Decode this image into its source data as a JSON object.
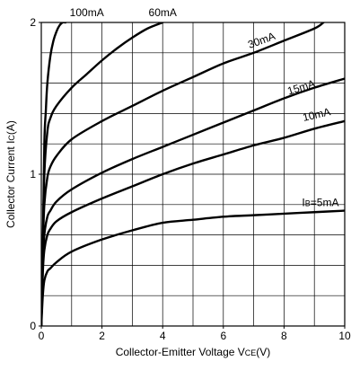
{
  "chart_data": {
    "type": "line",
    "xlabel": "Collector-Emitter Voltage VCE(V)",
    "xlabel_parts": [
      "Collector-Emitter Voltage V",
      "CE",
      "(V)"
    ],
    "ylabel": "Collector Current IC(A)",
    "ylabel_parts": [
      "Collector Current I",
      "C",
      "(A)"
    ],
    "xlim": [
      0,
      10
    ],
    "ylim": [
      0,
      2
    ],
    "x_ticks": [
      "0",
      "2",
      "4",
      "6",
      "8",
      "10"
    ],
    "y_ticks": [
      "0",
      "1",
      "2"
    ],
    "grid": true,
    "series": [
      {
        "name": "100mA",
        "x": [
          0,
          0.05,
          0.1,
          0.15,
          0.2,
          0.3,
          0.4,
          0.5,
          0.6,
          0.7,
          0.8
        ],
        "y": [
          0,
          0.5,
          1.2,
          1.42,
          1.6,
          1.78,
          1.88,
          1.94,
          1.98,
          2.0,
          2.0
        ]
      },
      {
        "name": "60mA",
        "x": [
          0,
          0.05,
          0.1,
          0.2,
          0.3,
          0.5,
          1,
          1.5,
          2,
          2.5,
          3,
          3.5,
          4
        ],
        "y": [
          0,
          0.5,
          1.0,
          1.28,
          1.37,
          1.45,
          1.57,
          1.66,
          1.75,
          1.83,
          1.9,
          1.96,
          2.0
        ]
      },
      {
        "name": "30mA",
        "x": [
          0,
          0.05,
          0.1,
          0.2,
          0.3,
          0.5,
          1,
          2,
          3,
          4,
          5,
          6,
          7,
          8,
          9,
          9.3
        ],
        "y": [
          0,
          0.5,
          0.8,
          0.98,
          1.05,
          1.12,
          1.23,
          1.35,
          1.45,
          1.55,
          1.64,
          1.73,
          1.8,
          1.88,
          1.96,
          2.0
        ]
      },
      {
        "name": "15mA",
        "x": [
          0,
          0.05,
          0.1,
          0.2,
          0.3,
          0.5,
          1,
          2,
          3,
          4,
          5,
          6,
          7,
          8,
          9,
          10
        ],
        "y": [
          0,
          0.4,
          0.6,
          0.72,
          0.76,
          0.82,
          0.9,
          1.01,
          1.1,
          1.18,
          1.26,
          1.34,
          1.42,
          1.5,
          1.57,
          1.63
        ]
      },
      {
        "name": "10mA",
        "x": [
          0,
          0.05,
          0.1,
          0.2,
          0.3,
          0.5,
          1,
          2,
          3,
          4,
          5,
          6,
          7,
          8,
          9,
          10
        ],
        "y": [
          0,
          0.35,
          0.5,
          0.6,
          0.64,
          0.69,
          0.75,
          0.84,
          0.92,
          1.0,
          1.07,
          1.13,
          1.19,
          1.24,
          1.3,
          1.35
        ]
      },
      {
        "name": "IB=5mA",
        "x": [
          0,
          0.05,
          0.1,
          0.2,
          0.3,
          0.5,
          1,
          2,
          3,
          4,
          5,
          6,
          7,
          8,
          9,
          10
        ],
        "y": [
          0,
          0.2,
          0.3,
          0.36,
          0.38,
          0.42,
          0.49,
          0.57,
          0.63,
          0.68,
          0.7,
          0.72,
          0.73,
          0.74,
          0.75,
          0.76
        ]
      }
    ],
    "series_labels": [
      {
        "text": "100mA",
        "x": 1.5,
        "y": 2.04,
        "anchor": "middle"
      },
      {
        "text": "60mA",
        "x": 4.0,
        "y": 2.04,
        "anchor": "middle"
      },
      {
        "text": "30mA",
        "x": 7.3,
        "y": 1.86,
        "anchor": "middle",
        "rotate": -20
      },
      {
        "text": "15mA",
        "x": 8.6,
        "y": 1.55,
        "anchor": "middle",
        "rotate": -17
      },
      {
        "text": "10mA",
        "x": 9.1,
        "y": 1.37,
        "anchor": "middle",
        "rotate": -13
      },
      {
        "text": "IB=5mA",
        "x": 9.2,
        "y": 0.79,
        "anchor": "middle",
        "sub": "B"
      }
    ],
    "line_color": "#000000",
    "grid_color": "#000000"
  }
}
